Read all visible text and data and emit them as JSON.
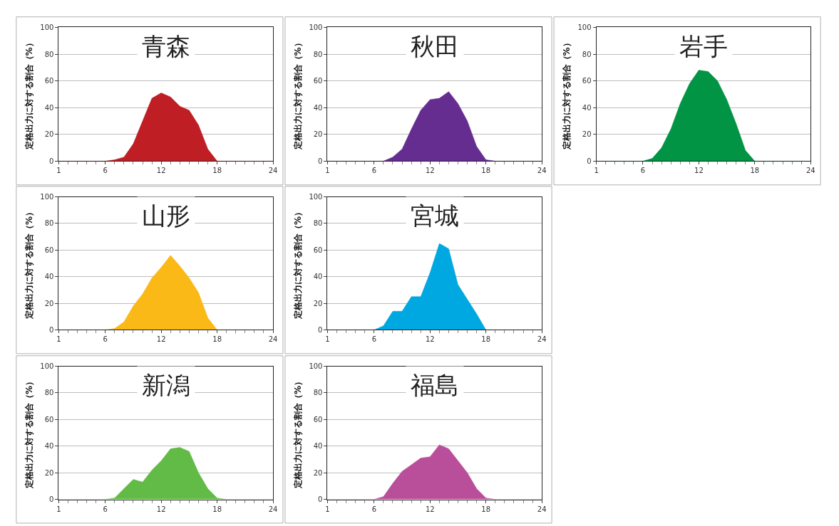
{
  "chart_data": [
    {
      "type": "area",
      "title": "青森",
      "ylabel": "定格出力に対する割合（%）",
      "x": [
        1,
        2,
        3,
        4,
        5,
        6,
        7,
        8,
        9,
        10,
        11,
        12,
        13,
        14,
        15,
        16,
        17,
        18,
        19,
        20,
        21,
        22,
        23,
        24
      ],
      "series": [
        {
          "color": "#be1e24",
          "values": [
            0,
            0,
            0,
            0,
            0,
            0,
            1,
            3,
            13,
            30,
            47,
            51,
            48,
            41,
            38,
            27,
            9,
            0,
            0,
            0,
            0,
            0,
            0,
            0
          ]
        }
      ],
      "xlim": [
        1,
        24
      ],
      "xticks": [
        1,
        6,
        12,
        18,
        24
      ],
      "ylim": [
        0,
        100
      ],
      "yticks": [
        0,
        20,
        40,
        60,
        80,
        100
      ],
      "grid": "y"
    },
    {
      "type": "area",
      "title": "秋田",
      "ylabel": "定格出力に対する割合（%）",
      "x": [
        1,
        2,
        3,
        4,
        5,
        6,
        7,
        8,
        9,
        10,
        11,
        12,
        13,
        14,
        15,
        16,
        17,
        18,
        19,
        20,
        21,
        22,
        23,
        24
      ],
      "series": [
        {
          "color": "#662d91",
          "values": [
            0,
            0,
            0,
            0,
            0,
            0,
            0,
            3,
            9,
            24,
            38,
            46,
            47,
            52,
            43,
            30,
            11,
            1,
            0,
            0,
            0,
            0,
            0,
            0
          ]
        }
      ],
      "xlim": [
        1,
        24
      ],
      "xticks": [
        1,
        6,
        12,
        18,
        24
      ],
      "ylim": [
        0,
        100
      ],
      "yticks": [
        0,
        20,
        40,
        60,
        80,
        100
      ],
      "grid": "y"
    },
    {
      "type": "area",
      "title": "岩手",
      "ylabel": "定格出力に対する割合（%）",
      "x": [
        1,
        2,
        3,
        4,
        5,
        6,
        7,
        8,
        9,
        10,
        11,
        12,
        13,
        14,
        15,
        16,
        17,
        18,
        19,
        20,
        21,
        22,
        23,
        24
      ],
      "series": [
        {
          "color": "#009444",
          "values": [
            0,
            0,
            0,
            0,
            0,
            0,
            2,
            10,
            24,
            43,
            58,
            68,
            67,
            60,
            46,
            28,
            8,
            0,
            0,
            0,
            0,
            0,
            0,
            0
          ]
        }
      ],
      "xlim": [
        1,
        24
      ],
      "xticks": [
        1,
        6,
        12,
        18,
        24
      ],
      "ylim": [
        0,
        100
      ],
      "yticks": [
        0,
        20,
        40,
        60,
        80,
        100
      ],
      "grid": "y"
    },
    {
      "type": "area",
      "title": "山形",
      "ylabel": "定格出力に対する割合（%）",
      "x": [
        1,
        2,
        3,
        4,
        5,
        6,
        7,
        8,
        9,
        10,
        11,
        12,
        13,
        14,
        15,
        16,
        17,
        18,
        19,
        20,
        21,
        22,
        23,
        24
      ],
      "series": [
        {
          "color": "#fbb917",
          "values": [
            0,
            0,
            0,
            0,
            0,
            0,
            1,
            6,
            18,
            27,
            39,
            47,
            56,
            48,
            39,
            28,
            9,
            0,
            0,
            0,
            0,
            0,
            0,
            0
          ]
        }
      ],
      "xlim": [
        1,
        24
      ],
      "xticks": [
        1,
        6,
        12,
        18,
        24
      ],
      "ylim": [
        0,
        100
      ],
      "yticks": [
        0,
        20,
        40,
        60,
        80,
        100
      ],
      "grid": "y"
    },
    {
      "type": "area",
      "title": "宮城",
      "ylabel": "定格出力に対する割合（%）",
      "x": [
        1,
        2,
        3,
        4,
        5,
        6,
        7,
        8,
        9,
        10,
        11,
        12,
        13,
        14,
        15,
        16,
        17,
        18,
        19,
        20,
        21,
        22,
        23,
        24
      ],
      "series": [
        {
          "color": "#00a8e1",
          "values": [
            0,
            0,
            0,
            0,
            0,
            0,
            3,
            14,
            14,
            25,
            25,
            43,
            65,
            61,
            34,
            23,
            12,
            0,
            0,
            0,
            0,
            0,
            0,
            0
          ]
        }
      ],
      "xlim": [
        1,
        24
      ],
      "xticks": [
        1,
        6,
        12,
        18,
        24
      ],
      "ylim": [
        0,
        100
      ],
      "yticks": [
        0,
        20,
        40,
        60,
        80,
        100
      ],
      "grid": "y"
    },
    {
      "type": "area",
      "title": "新潟",
      "ylabel": "定格出力に対する割合（%）",
      "x": [
        1,
        2,
        3,
        4,
        5,
        6,
        7,
        8,
        9,
        10,
        11,
        12,
        13,
        14,
        15,
        16,
        17,
        18,
        19,
        20,
        21,
        22,
        23,
        24
      ],
      "series": [
        {
          "color": "#62bb46",
          "values": [
            0,
            0,
            0,
            0,
            0,
            0,
            1,
            8,
            15,
            13,
            22,
            29,
            38,
            39,
            36,
            20,
            8,
            1,
            0,
            0,
            0,
            0,
            0,
            0
          ]
        }
      ],
      "xlim": [
        1,
        24
      ],
      "xticks": [
        1,
        6,
        12,
        18,
        24
      ],
      "ylim": [
        0,
        100
      ],
      "yticks": [
        0,
        20,
        40,
        60,
        80,
        100
      ],
      "grid": "y"
    },
    {
      "type": "area",
      "title": "福島",
      "ylabel": "定格出力に対する割合（%）",
      "x": [
        1,
        2,
        3,
        4,
        5,
        6,
        7,
        8,
        9,
        10,
        11,
        12,
        13,
        14,
        15,
        16,
        17,
        18,
        19,
        20,
        21,
        22,
        23,
        24
      ],
      "series": [
        {
          "color": "#b94f9b",
          "values": [
            0,
            0,
            0,
            0,
            0,
            0,
            2,
            12,
            21,
            26,
            31,
            32,
            41,
            38,
            29,
            20,
            8,
            1,
            0,
            0,
            0,
            0,
            0,
            0
          ]
        }
      ],
      "xlim": [
        1,
        24
      ],
      "xticks": [
        1,
        6,
        12,
        18,
        24
      ],
      "ylim": [
        0,
        100
      ],
      "yticks": [
        0,
        20,
        40,
        60,
        80,
        100
      ],
      "grid": "y"
    }
  ]
}
